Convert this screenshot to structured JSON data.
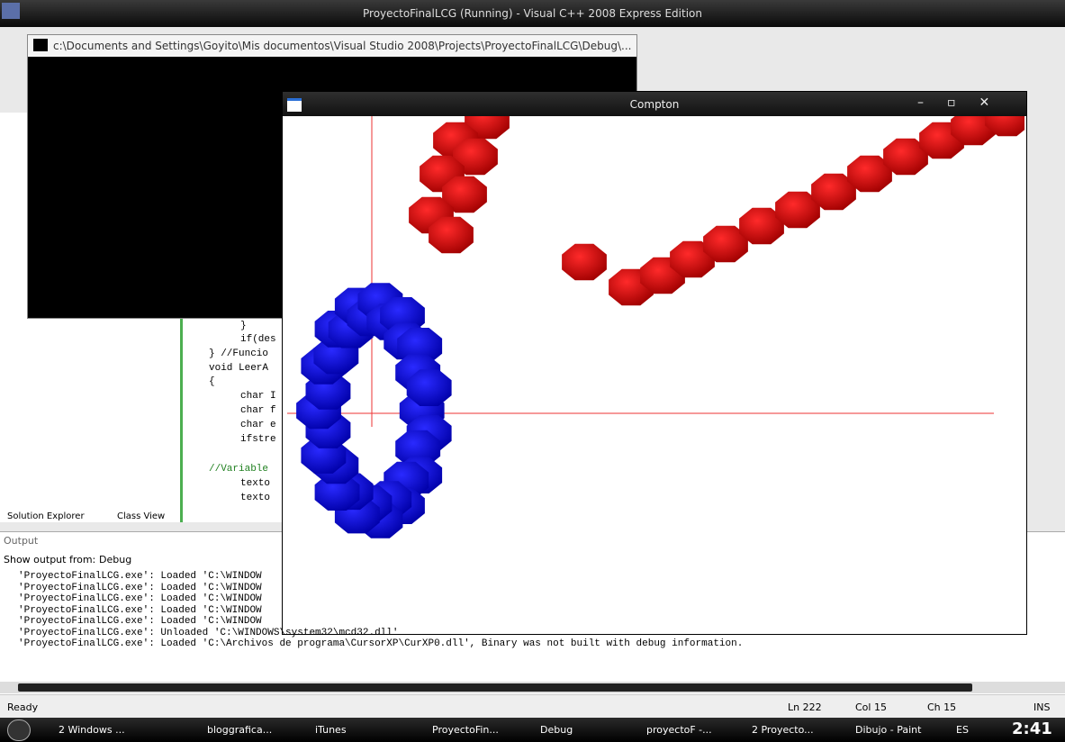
{
  "ide": {
    "title": "ProyectoFinalLCG (Running) - Visual C++ 2008 Express Edition",
    "console_title": "c:\\Documents and Settings\\Goyito\\Mis documentos\\Visual Studio 2008\\Projects\\ProyectoFinalLCG\\Debug\\...",
    "compton_title": "Compton",
    "code_lines": [
      "}",
      "if(des",
      "} //Funcio",
      "void LeerA",
      "{",
      "char I",
      "char f",
      "char e",
      "ifstre",
      "//Variable",
      "texto",
      "texto"
    ],
    "panel_tabs": [
      "Solution Explorer",
      "Class View"
    ],
    "output": {
      "title": "Output",
      "show_label": "Show output from:",
      "source": "Debug",
      "lines": [
        "'ProyectoFinalLCG.exe': Loaded 'C:\\WINDOW",
        "'ProyectoFinalLCG.exe': Loaded 'C:\\WINDOW",
        "'ProyectoFinalLCG.exe': Loaded 'C:\\WINDOW",
        "'ProyectoFinalLCG.exe': Loaded 'C:\\WINDOW",
        "'ProyectoFinalLCG.exe': Loaded 'C:\\WINDOW",
        "'ProyectoFinalLCG.exe': Unloaded 'C:\\WINDOWS\\system32\\mcd32.dll'",
        "'ProyectoFinalLCG.exe': Loaded 'C:\\Archivos de programa\\CursorXP\\CurXP0.dll', Binary was not built with debug information."
      ]
    },
    "status": [
      "Ready",
      "Ln 222",
      "Col 15",
      "Ch 15",
      "INS"
    ]
  },
  "taskbar": {
    "items": [
      "2 Windows ...",
      "bloggrafica...",
      "iTunes",
      "ProyectoFin...",
      "Debug",
      "proyectoF -...",
      "2 Proyecto...",
      "Dibujo - Paint"
    ],
    "language": "ES",
    "clock": "2:41"
  }
}
